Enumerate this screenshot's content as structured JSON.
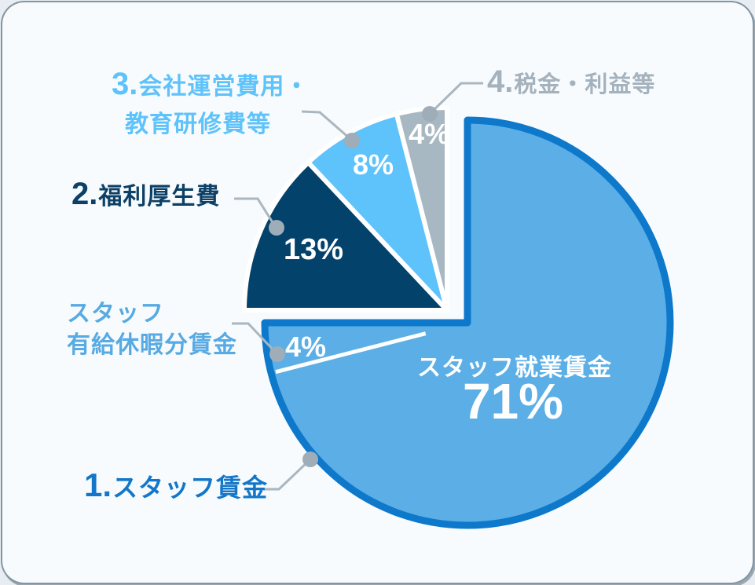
{
  "chart_data": {
    "type": "pie",
    "unit": "%",
    "start_angle": "top",
    "direction": "clockwise",
    "slices": [
      {
        "id": "staff-working-wage",
        "label": "スタッフ就業賃金",
        "value": 71,
        "color": "#5bafe6",
        "group": "1.スタッフ賃金"
      },
      {
        "id": "staff-paid-leave-wage",
        "label": "スタッフ有給休暇分賃金",
        "value": 4,
        "color": "#5bafe6",
        "group": "1.スタッフ賃金"
      },
      {
        "id": "welfare-expenses",
        "label": "2.福利厚生費",
        "value": 13,
        "color": "#03426b"
      },
      {
        "id": "operations-training",
        "label": "3.会社運営費用・教育研修費等",
        "value": 8,
        "color": "#5ec2fb"
      },
      {
        "id": "tax-profit",
        "label": "4.税金・利益等",
        "value": 4,
        "color": "#a8b8c2"
      }
    ],
    "exploded_group": {
      "label": "1.スタッフ賃金",
      "slices": [
        "スタッフ就業賃金",
        "スタッフ有給休暇分賃金"
      ],
      "border_color": "#0e78cb",
      "total_value": 75
    },
    "legend_position": "outside-callouts",
    "grid": false
  },
  "center_label": {
    "title": "スタッフ就業賃金",
    "value": "71%"
  },
  "callouts": {
    "c1": {
      "num": "1.",
      "text": "スタッフ賃金",
      "color": "#1377c9"
    },
    "c2": {
      "num": "2.",
      "text": "福利厚生費",
      "color": "#0d4066"
    },
    "c3": {
      "num": "3.",
      "line1": "会社運営費用・",
      "line2": "教育研修費等",
      "color": "#5ec2fb"
    },
    "c4": {
      "num": "4.",
      "text": "税金・利益等",
      "color": "#a4b2bd"
    },
    "paid_leave": {
      "line1": "スタッフ",
      "line2": "有給休暇分賃金",
      "color": "#58aae3"
    }
  },
  "style": {
    "card_background": "#f8fbfd",
    "outer_background": "#e7edf2",
    "card_border": "#5d7384",
    "leader_line": "#aab6c0",
    "leader_dot": "#9fadb8",
    "slice_gap": "#ffffff",
    "value_text": "#ffffff"
  }
}
